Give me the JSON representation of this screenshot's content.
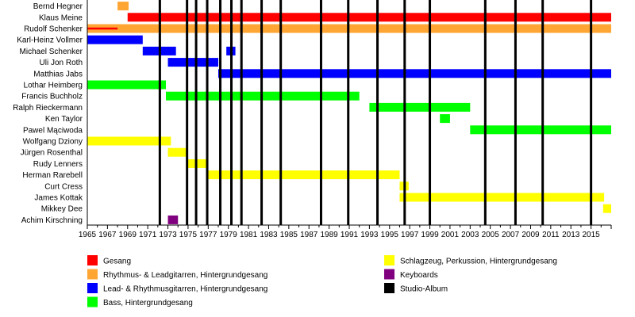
{
  "chart_data": {
    "type": "timeline",
    "title": "",
    "x_range": [
      1965,
      2017
    ],
    "x_ticks": [
      "1965",
      "1967",
      "1969",
      "1971",
      "1973",
      "1975",
      "1977",
      "1979",
      "1981",
      "1983",
      "1985",
      "1987",
      "1989",
      "1991",
      "1993",
      "1995",
      "1997",
      "1999",
      "2001",
      "2003",
      "2005",
      "2007",
      "2009",
      "2011",
      "2013",
      "2015"
    ],
    "grid": false,
    "members": [
      {
        "name": "Bernd Hegner",
        "periods": [
          {
            "role": "Rhythmus- & Leadgitarren, Hintergrundgesang",
            "start": 1968.0,
            "end": 1969.1
          }
        ]
      },
      {
        "name": "Klaus Meine",
        "periods": [
          {
            "role": "Gesang",
            "start": 1969.0,
            "end": 2017.0
          }
        ]
      },
      {
        "name": "Rudolf Schenker",
        "periods": [
          {
            "role": "Rhythmus- & Leadgitarren, Hintergrundgesang",
            "start": 1965.0,
            "end": 2017.0
          },
          {
            "role": "Gesang",
            "start": 1965.0,
            "end": 1968.0,
            "thin": true
          }
        ]
      },
      {
        "name": "Karl-Heinz Vollmer",
        "periods": [
          {
            "role": "Lead- & Rhythmusgitarren, Hintergrundgesang",
            "start": 1965.0,
            "end": 1970.5
          }
        ]
      },
      {
        "name": "Michael Schenker",
        "periods": [
          {
            "role": "Lead- & Rhythmusgitarren, Hintergrundgesang",
            "start": 1970.5,
            "end": 1973.8
          },
          {
            "role": "Lead- & Rhythmusgitarren, Hintergrundgesang",
            "start": 1978.8,
            "end": 1979.7
          }
        ]
      },
      {
        "name": "Uli Jon Roth",
        "periods": [
          {
            "role": "Lead- & Rhythmusgitarren, Hintergrundgesang",
            "start": 1973.0,
            "end": 1978.0
          }
        ]
      },
      {
        "name": "Matthias Jabs",
        "periods": [
          {
            "role": "Lead- & Rhythmusgitarren, Hintergrundgesang",
            "start": 1978.0,
            "end": 2017.0
          }
        ]
      },
      {
        "name": "Lothar Heimberg",
        "periods": [
          {
            "role": "Bass, Hintergrundgesang",
            "start": 1965.0,
            "end": 1972.8
          }
        ]
      },
      {
        "name": "Francis Buchholz",
        "periods": [
          {
            "role": "Bass, Hintergrundgesang",
            "start": 1972.8,
            "end": 1992.0
          }
        ]
      },
      {
        "name": "Ralph Rieckermann",
        "periods": [
          {
            "role": "Bass, Hintergrundgesang",
            "start": 1993.0,
            "end": 2003.0
          }
        ]
      },
      {
        "name": "Ken Taylor",
        "periods": [
          {
            "role": "Bass, Hintergrundgesang",
            "start": 2000.0,
            "end": 2001.0
          }
        ]
      },
      {
        "name": "Pawel Mąciwoda",
        "periods": [
          {
            "role": "Bass, Hintergrundgesang",
            "start": 2003.0,
            "end": 2017.0
          }
        ]
      },
      {
        "name": "Wolfgang Dziony",
        "periods": [
          {
            "role": "Schlagzeug, Perkussion, Hintergrundgesang",
            "start": 1965.0,
            "end": 1973.3
          }
        ]
      },
      {
        "name": "Jürgen Rosenthal",
        "periods": [
          {
            "role": "Schlagzeug, Perkussion, Hintergrundgesang",
            "start": 1973.0,
            "end": 1974.9
          }
        ]
      },
      {
        "name": "Rudy Lenners",
        "periods": [
          {
            "role": "Schlagzeug, Perkussion, Hintergrundgesang",
            "start": 1975.0,
            "end": 1976.9
          }
        ]
      },
      {
        "name": "Herman Rarebell",
        "periods": [
          {
            "role": "Schlagzeug, Perkussion, Hintergrundgesang",
            "start": 1977.0,
            "end": 1996.0
          }
        ]
      },
      {
        "name": "Curt Cress",
        "periods": [
          {
            "role": "Schlagzeug, Perkussion, Hintergrundgesang",
            "start": 1996.0,
            "end": 1996.9
          }
        ]
      },
      {
        "name": "James Kottak",
        "periods": [
          {
            "role": "Schlagzeug, Perkussion, Hintergrundgesang",
            "start": 1996.0,
            "end": 2016.3
          }
        ]
      },
      {
        "name": "Mikkey Dee",
        "periods": [
          {
            "role": "Schlagzeug, Perkussion, Hintergrundgesang",
            "start": 2016.2,
            "end": 2017.0
          }
        ]
      },
      {
        "name": "Achim Kirschning",
        "periods": [
          {
            "role": "Keyboards",
            "start": 1973.0,
            "end": 1974.0
          }
        ]
      }
    ],
    "studio_albums": [
      1972.2,
      1974.9,
      1975.8,
      1976.9,
      1978.2,
      1979.3,
      1980.3,
      1982.3,
      1984.2,
      1988.2,
      1990.9,
      1993.8,
      1996.5,
      1999.0,
      2004.5,
      2007.5,
      2010.2,
      2015.0
    ],
    "legend": [
      {
        "label": "Gesang",
        "color": "#ff0000"
      },
      {
        "label": "Rhythmus- & Leadgitarren, Hintergrundgesang",
        "color": "#ffa533"
      },
      {
        "label": "Lead- & Rhythmusgitarren, Hintergrundgesang",
        "color": "#0000ff"
      },
      {
        "label": "Bass, Hintergrundgesang",
        "color": "#00ff00"
      },
      {
        "label": "Schlagzeug, Perkussion, Hintergrundgesang",
        "color": "#ffff00"
      },
      {
        "label": "Keyboards",
        "color": "#800080"
      },
      {
        "label": "Studio-Album",
        "color": "#000000"
      }
    ]
  }
}
